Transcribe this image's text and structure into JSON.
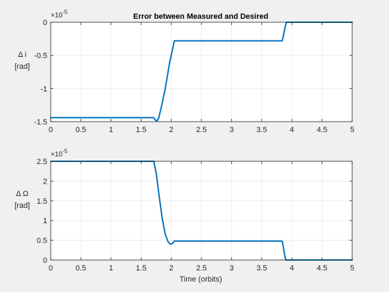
{
  "chart_data": [
    {
      "type": "line",
      "title": "Error between Measured and Desired",
      "ylabel_lines": [
        "Δ i",
        "[rad]"
      ],
      "xlabel": "",
      "exponent_base": "×10",
      "exponent_power": "-5",
      "xlim": [
        0,
        5
      ],
      "ylim": [
        -1.5,
        0
      ],
      "xticks": [
        0,
        0.5,
        1,
        1.5,
        2,
        2.5,
        3,
        3.5,
        4,
        4.5,
        5
      ],
      "xtick_labels": [
        "0",
        "0.5",
        "1",
        "1.5",
        "2",
        "2.5",
        "3",
        "3.5",
        "4",
        "4.5",
        "5"
      ],
      "yticks": [
        -1.5,
        -1,
        -0.5,
        0
      ],
      "ytick_labels": [
        "-1.5",
        "-1",
        "-0.5",
        "0"
      ],
      "grid": true,
      "color": "#0072bd",
      "series": [
        {
          "x": [
            0,
            1.71,
            1.73,
            1.76,
            1.79,
            1.83,
            1.9,
            1.97,
            2.05,
            2.06,
            3.84,
            3.86,
            3.89,
            3.91,
            5
          ],
          "y": [
            -1.44,
            -1.44,
            -1.47,
            -1.49,
            -1.45,
            -1.3,
            -1.0,
            -0.62,
            -0.28,
            -0.28,
            -0.28,
            -0.2,
            -0.06,
            0,
            0
          ]
        }
      ]
    },
    {
      "type": "line",
      "title": "",
      "ylabel_lines": [
        "Δ Ω",
        "[rad]"
      ],
      "xlabel": "Time (orbits)",
      "exponent_base": "×10",
      "exponent_power": "-5",
      "xlim": [
        0,
        5
      ],
      "ylim": [
        0,
        2.5
      ],
      "xticks": [
        0,
        0.5,
        1,
        1.5,
        2,
        2.5,
        3,
        3.5,
        4,
        4.5,
        5
      ],
      "xtick_labels": [
        "0",
        "0.5",
        "1",
        "1.5",
        "2",
        "2.5",
        "3",
        "3.5",
        "4",
        "4.5",
        "5"
      ],
      "yticks": [
        0,
        0.5,
        1,
        1.5,
        2,
        2.5
      ],
      "ytick_labels": [
        "0",
        "0.5",
        "1",
        "1.5",
        "2",
        "2.5"
      ],
      "grid": true,
      "color": "#0072bd",
      "series": [
        {
          "x": [
            0,
            1.71,
            1.75,
            1.8,
            1.85,
            1.9,
            1.95,
            1.99,
            2.02,
            2.05,
            2.06,
            3.84,
            3.86,
            3.88,
            3.9,
            5
          ],
          "y": [
            2.5,
            2.5,
            2.2,
            1.6,
            1.05,
            0.65,
            0.45,
            0.4,
            0.42,
            0.48,
            0.48,
            0.48,
            0.32,
            0.12,
            0,
            0
          ]
        }
      ]
    }
  ]
}
